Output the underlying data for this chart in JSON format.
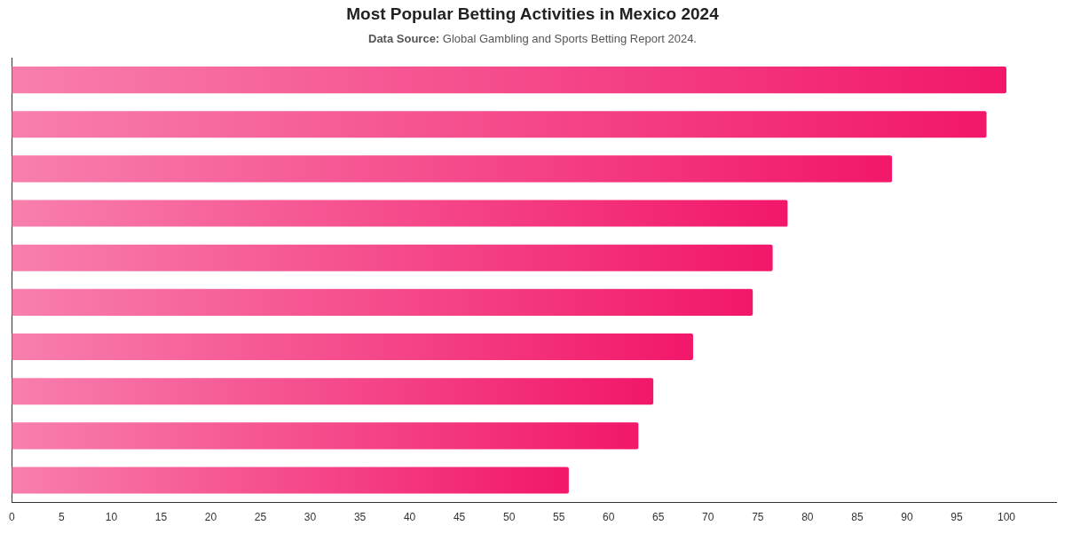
{
  "chart_data": {
    "type": "bar",
    "orientation": "horizontal",
    "title": "Most Popular Betting Activities in Mexico 2024",
    "subtitle": "Data Source: Global Gambling and Sports Betting Report 2024.",
    "categories": [
      null,
      null,
      null,
      null,
      null,
      null,
      null,
      null,
      null,
      null
    ],
    "values": [
      100,
      98,
      88.5,
      78,
      76.5,
      74.5,
      68.5,
      64.5,
      63,
      56
    ],
    "color": "#f2176a",
    "xlim": [
      0,
      105
    ],
    "xticks": [
      0,
      5,
      10,
      15,
      20,
      25,
      30,
      35,
      40,
      45,
      50,
      55,
      60,
      65,
      70,
      75,
      80,
      85,
      90,
      95,
      100
    ],
    "tick_labels": "x"
  }
}
